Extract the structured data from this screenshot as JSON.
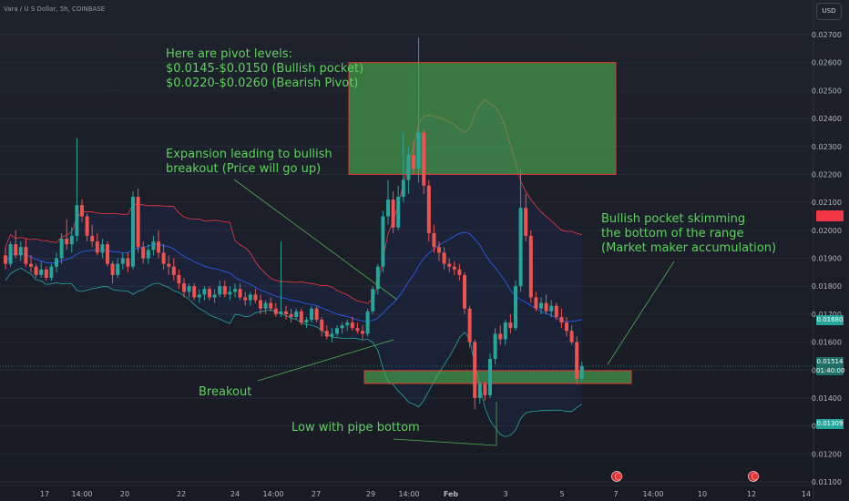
{
  "header": {
    "symbol": "Vara / U S Dollar, 5h, COINBASE",
    "currency_button": "USD"
  },
  "annotations": {
    "pivots": "Here are pivot levels:\n$0.0145-$0.0150 (Bullish pocket)\n$0.0220-$0.0260 (Bearish Pivot)",
    "expansion": "Expansion leading to bullish\nbreakout (Price will go up)",
    "bullish_pocket": "Bullish pocket skimming\nthe bottom of the range\n(Market maker accumulation)",
    "breakout": "Breakout",
    "low": "Low with pipe bottom"
  },
  "price_labels": {
    "upper_band": "0.01680",
    "last_price": "0.01514",
    "countdown": "01:40:00",
    "lower_band": "0.01309"
  },
  "colors": {
    "up": "#26a69a",
    "down": "#ef5350",
    "zone": "#3f9a44",
    "annotation": "#5fd05f",
    "upper_band": "#f23645",
    "lower_band": "#26a69a",
    "basis": "#2962ff"
  },
  "chart_data": {
    "type": "candlestick",
    "y_ticks": [
      "0.02700",
      "0.02600",
      "0.02500",
      "0.02400",
      "0.02300",
      "0.02200",
      "0.02100",
      "0.02000",
      "0.01900",
      "0.01800",
      "0.01700",
      "0.01600",
      "0.01500",
      "0.01400",
      "0.01300",
      "0.01200",
      "0.01100"
    ],
    "x_ticks": [
      "17",
      "14:00",
      "20",
      "22",
      "24",
      "14:00",
      "27",
      "29",
      "14:00",
      "Feb",
      "3",
      "5",
      "7",
      "14:00",
      "10",
      "12",
      "14"
    ],
    "ylim": [
      0.011,
      0.0275
    ],
    "zones": [
      {
        "name": "Bearish Pivot",
        "low": 0.022,
        "high": 0.026
      },
      {
        "name": "Bullish pocket",
        "low": 0.0145,
        "high": 0.015
      }
    ],
    "candles": [
      {
        "o": 0.0191,
        "h": 0.0194,
        "l": 0.0186,
        "c": 0.0188
      },
      {
        "o": 0.0188,
        "h": 0.0196,
        "l": 0.0187,
        "c": 0.0195
      },
      {
        "o": 0.0195,
        "h": 0.02,
        "l": 0.019,
        "c": 0.0191
      },
      {
        "o": 0.0191,
        "h": 0.0196,
        "l": 0.0189,
        "c": 0.0194
      },
      {
        "o": 0.0194,
        "h": 0.0197,
        "l": 0.0187,
        "c": 0.0188
      },
      {
        "o": 0.0188,
        "h": 0.0191,
        "l": 0.0185,
        "c": 0.0187
      },
      {
        "o": 0.0187,
        "h": 0.0188,
        "l": 0.0183,
        "c": 0.0184
      },
      {
        "o": 0.0184,
        "h": 0.0189,
        "l": 0.0183,
        "c": 0.0186
      },
      {
        "o": 0.0186,
        "h": 0.0187,
        "l": 0.0182,
        "c": 0.0183
      },
      {
        "o": 0.0183,
        "h": 0.0188,
        "l": 0.0182,
        "c": 0.0187
      },
      {
        "o": 0.0187,
        "h": 0.0192,
        "l": 0.0185,
        "c": 0.019
      },
      {
        "o": 0.019,
        "h": 0.0199,
        "l": 0.0188,
        "c": 0.0197
      },
      {
        "o": 0.0197,
        "h": 0.0204,
        "l": 0.0193,
        "c": 0.0195
      },
      {
        "o": 0.0195,
        "h": 0.0201,
        "l": 0.0192,
        "c": 0.0198
      },
      {
        "o": 0.0198,
        "h": 0.0233,
        "l": 0.0196,
        "c": 0.0209
      },
      {
        "o": 0.0209,
        "h": 0.0211,
        "l": 0.0203,
        "c": 0.0205
      },
      {
        "o": 0.0205,
        "h": 0.0206,
        "l": 0.0196,
        "c": 0.0198
      },
      {
        "o": 0.0198,
        "h": 0.0202,
        "l": 0.0194,
        "c": 0.0196
      },
      {
        "o": 0.0196,
        "h": 0.0199,
        "l": 0.0191,
        "c": 0.0192
      },
      {
        "o": 0.0192,
        "h": 0.0197,
        "l": 0.019,
        "c": 0.0195
      },
      {
        "o": 0.0195,
        "h": 0.0196,
        "l": 0.0187,
        "c": 0.0188
      },
      {
        "o": 0.0188,
        "h": 0.0189,
        "l": 0.0181,
        "c": 0.0184
      },
      {
        "o": 0.0184,
        "h": 0.019,
        "l": 0.0183,
        "c": 0.0188
      },
      {
        "o": 0.0188,
        "h": 0.0192,
        "l": 0.0186,
        "c": 0.019
      },
      {
        "o": 0.019,
        "h": 0.0192,
        "l": 0.0185,
        "c": 0.0187
      },
      {
        "o": 0.0187,
        "h": 0.0214,
        "l": 0.0186,
        "c": 0.0212
      },
      {
        "o": 0.0212,
        "h": 0.0215,
        "l": 0.0192,
        "c": 0.0194
      },
      {
        "o": 0.0194,
        "h": 0.0196,
        "l": 0.0188,
        "c": 0.019
      },
      {
        "o": 0.019,
        "h": 0.0195,
        "l": 0.0188,
        "c": 0.0193
      },
      {
        "o": 0.0193,
        "h": 0.0198,
        "l": 0.0191,
        "c": 0.0196
      },
      {
        "o": 0.0196,
        "h": 0.02,
        "l": 0.019,
        "c": 0.0192
      },
      {
        "o": 0.0192,
        "h": 0.0195,
        "l": 0.0186,
        "c": 0.0188
      },
      {
        "o": 0.0188,
        "h": 0.0191,
        "l": 0.0184,
        "c": 0.0187
      },
      {
        "o": 0.0187,
        "h": 0.019,
        "l": 0.0182,
        "c": 0.0184
      },
      {
        "o": 0.0184,
        "h": 0.0186,
        "l": 0.0179,
        "c": 0.0181
      },
      {
        "o": 0.0181,
        "h": 0.0183,
        "l": 0.0176,
        "c": 0.0178
      },
      {
        "o": 0.0178,
        "h": 0.0181,
        "l": 0.0176,
        "c": 0.018
      },
      {
        "o": 0.018,
        "h": 0.0181,
        "l": 0.0175,
        "c": 0.0176
      },
      {
        "o": 0.0176,
        "h": 0.0179,
        "l": 0.0174,
        "c": 0.0177
      },
      {
        "o": 0.0177,
        "h": 0.018,
        "l": 0.0175,
        "c": 0.0179
      },
      {
        "o": 0.0179,
        "h": 0.018,
        "l": 0.0175,
        "c": 0.0176
      },
      {
        "o": 0.0176,
        "h": 0.0179,
        "l": 0.0174,
        "c": 0.0177
      },
      {
        "o": 0.0177,
        "h": 0.0182,
        "l": 0.0176,
        "c": 0.018
      },
      {
        "o": 0.018,
        "h": 0.0182,
        "l": 0.0176,
        "c": 0.0177
      },
      {
        "o": 0.0177,
        "h": 0.018,
        "l": 0.0175,
        "c": 0.0178
      },
      {
        "o": 0.0178,
        "h": 0.0181,
        "l": 0.0176,
        "c": 0.0179
      },
      {
        "o": 0.0179,
        "h": 0.0181,
        "l": 0.0175,
        "c": 0.0176
      },
      {
        "o": 0.0176,
        "h": 0.0178,
        "l": 0.0173,
        "c": 0.0175
      },
      {
        "o": 0.0175,
        "h": 0.0178,
        "l": 0.0173,
        "c": 0.0177
      },
      {
        "o": 0.0177,
        "h": 0.0179,
        "l": 0.0174,
        "c": 0.0175
      },
      {
        "o": 0.0175,
        "h": 0.0177,
        "l": 0.017,
        "c": 0.0172
      },
      {
        "o": 0.0172,
        "h": 0.0175,
        "l": 0.017,
        "c": 0.0174
      },
      {
        "o": 0.0174,
        "h": 0.0176,
        "l": 0.0171,
        "c": 0.0172
      },
      {
        "o": 0.0172,
        "h": 0.0174,
        "l": 0.0169,
        "c": 0.017
      },
      {
        "o": 0.017,
        "h": 0.0196,
        "l": 0.0169,
        "c": 0.0171
      },
      {
        "o": 0.0171,
        "h": 0.0173,
        "l": 0.0168,
        "c": 0.017
      },
      {
        "o": 0.017,
        "h": 0.0172,
        "l": 0.0167,
        "c": 0.0169
      },
      {
        "o": 0.0169,
        "h": 0.0172,
        "l": 0.0168,
        "c": 0.0171
      },
      {
        "o": 0.0171,
        "h": 0.0172,
        "l": 0.0166,
        "c": 0.0167
      },
      {
        "o": 0.0167,
        "h": 0.0169,
        "l": 0.0165,
        "c": 0.0168
      },
      {
        "o": 0.0168,
        "h": 0.0173,
        "l": 0.0167,
        "c": 0.0172
      },
      {
        "o": 0.0172,
        "h": 0.0173,
        "l": 0.0167,
        "c": 0.0168
      },
      {
        "o": 0.0168,
        "h": 0.0169,
        "l": 0.0162,
        "c": 0.0164
      },
      {
        "o": 0.0164,
        "h": 0.0166,
        "l": 0.0161,
        "c": 0.0162
      },
      {
        "o": 0.0162,
        "h": 0.0165,
        "l": 0.016,
        "c": 0.0163
      },
      {
        "o": 0.0163,
        "h": 0.0166,
        "l": 0.0162,
        "c": 0.0165
      },
      {
        "o": 0.0165,
        "h": 0.0167,
        "l": 0.0163,
        "c": 0.0166
      },
      {
        "o": 0.0166,
        "h": 0.0168,
        "l": 0.0164,
        "c": 0.0167
      },
      {
        "o": 0.0167,
        "h": 0.0169,
        "l": 0.0164,
        "c": 0.0165
      },
      {
        "o": 0.0165,
        "h": 0.0167,
        "l": 0.0163,
        "c": 0.0164
      },
      {
        "o": 0.0164,
        "h": 0.0166,
        "l": 0.0161,
        "c": 0.0163
      },
      {
        "o": 0.0163,
        "h": 0.0172,
        "l": 0.0162,
        "c": 0.0171
      },
      {
        "o": 0.0171,
        "h": 0.018,
        "l": 0.017,
        "c": 0.0179
      },
      {
        "o": 0.0179,
        "h": 0.0188,
        "l": 0.0177,
        "c": 0.0187
      },
      {
        "o": 0.0187,
        "h": 0.0207,
        "l": 0.0185,
        "c": 0.0205
      },
      {
        "o": 0.0205,
        "h": 0.0218,
        "l": 0.0202,
        "c": 0.0211
      },
      {
        "o": 0.0211,
        "h": 0.0214,
        "l": 0.0199,
        "c": 0.0201
      },
      {
        "o": 0.0201,
        "h": 0.0216,
        "l": 0.02,
        "c": 0.0212
      },
      {
        "o": 0.0212,
        "h": 0.0235,
        "l": 0.021,
        "c": 0.0218
      },
      {
        "o": 0.0218,
        "h": 0.023,
        "l": 0.0213,
        "c": 0.0227
      },
      {
        "o": 0.0227,
        "h": 0.0232,
        "l": 0.022,
        "c": 0.0222
      },
      {
        "o": 0.0222,
        "h": 0.0269,
        "l": 0.0217,
        "c": 0.0235
      },
      {
        "o": 0.0235,
        "h": 0.0236,
        "l": 0.0213,
        "c": 0.0216
      },
      {
        "o": 0.0216,
        "h": 0.0218,
        "l": 0.0196,
        "c": 0.0199
      },
      {
        "o": 0.0199,
        "h": 0.0202,
        "l": 0.0192,
        "c": 0.0194
      },
      {
        "o": 0.0194,
        "h": 0.0196,
        "l": 0.0189,
        "c": 0.0192
      },
      {
        "o": 0.0192,
        "h": 0.0194,
        "l": 0.0186,
        "c": 0.0188
      },
      {
        "o": 0.0188,
        "h": 0.019,
        "l": 0.0185,
        "c": 0.0187
      },
      {
        "o": 0.0187,
        "h": 0.0189,
        "l": 0.0184,
        "c": 0.0186
      },
      {
        "o": 0.0186,
        "h": 0.0188,
        "l": 0.0182,
        "c": 0.0184
      },
      {
        "o": 0.0184,
        "h": 0.0185,
        "l": 0.017,
        "c": 0.0172
      },
      {
        "o": 0.0172,
        "h": 0.0173,
        "l": 0.0158,
        "c": 0.016
      },
      {
        "o": 0.016,
        "h": 0.0161,
        "l": 0.0136,
        "c": 0.014
      },
      {
        "o": 0.014,
        "h": 0.0146,
        "l": 0.0138,
        "c": 0.0145
      },
      {
        "o": 0.0145,
        "h": 0.0146,
        "l": 0.0139,
        "c": 0.0141
      },
      {
        "o": 0.0141,
        "h": 0.0156,
        "l": 0.014,
        "c": 0.0154
      },
      {
        "o": 0.0154,
        "h": 0.0165,
        "l": 0.0152,
        "c": 0.0163
      },
      {
        "o": 0.0163,
        "h": 0.0166,
        "l": 0.0159,
        "c": 0.0161
      },
      {
        "o": 0.0161,
        "h": 0.0168,
        "l": 0.0159,
        "c": 0.0167
      },
      {
        "o": 0.0167,
        "h": 0.017,
        "l": 0.0163,
        "c": 0.0165
      },
      {
        "o": 0.0165,
        "h": 0.0182,
        "l": 0.0164,
        "c": 0.018
      },
      {
        "o": 0.018,
        "h": 0.0222,
        "l": 0.0178,
        "c": 0.0208
      },
      {
        "o": 0.0208,
        "h": 0.0213,
        "l": 0.0196,
        "c": 0.0198
      },
      {
        "o": 0.0198,
        "h": 0.02,
        "l": 0.0174,
        "c": 0.0176
      },
      {
        "o": 0.0176,
        "h": 0.0178,
        "l": 0.0171,
        "c": 0.0172
      },
      {
        "o": 0.0172,
        "h": 0.0176,
        "l": 0.017,
        "c": 0.0174
      },
      {
        "o": 0.0174,
        "h": 0.0177,
        "l": 0.017,
        "c": 0.0171
      },
      {
        "o": 0.0171,
        "h": 0.0175,
        "l": 0.0169,
        "c": 0.0173
      },
      {
        "o": 0.0173,
        "h": 0.0174,
        "l": 0.0168,
        "c": 0.0169
      },
      {
        "o": 0.0169,
        "h": 0.0172,
        "l": 0.0165,
        "c": 0.0167
      },
      {
        "o": 0.0167,
        "h": 0.0169,
        "l": 0.0162,
        "c": 0.0164
      },
      {
        "o": 0.0164,
        "h": 0.0166,
        "l": 0.0159,
        "c": 0.016
      },
      {
        "o": 0.016,
        "h": 0.0162,
        "l": 0.0145,
        "c": 0.0147
      },
      {
        "o": 0.0147,
        "h": 0.0153,
        "l": 0.0146,
        "c": 0.01514
      }
    ]
  }
}
